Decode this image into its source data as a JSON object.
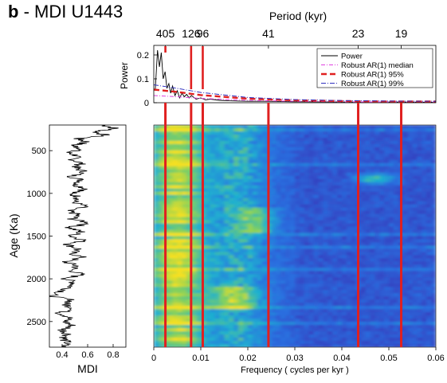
{
  "figure": {
    "panel_letter": "b",
    "title_rest": " - MDI U1443"
  },
  "colors": {
    "power": "#000000",
    "robust_median": "#e040e0",
    "robust_95": "#e02020",
    "robust_99": "#3030c0",
    "cycle_line": "#e02020",
    "cmap_low": "#3b1fa8",
    "cmap_mid1": "#2a6fe0",
    "cmap_mid2": "#1fb0d0",
    "cmap_high1": "#80d060",
    "cmap_high2": "#f5e020"
  },
  "chart_data": [
    {
      "id": "spectrum",
      "type": "line",
      "top_label": "Period (kyr)",
      "ylabel": "Power",
      "xlim": [
        0,
        0.06
      ],
      "ylim": [
        0,
        0.24
      ],
      "yticks": [
        0,
        0.1,
        0.2
      ],
      "period_ticks": [
        {
          "label": "405",
          "freq": 0.00247
        },
        {
          "label": "126",
          "freq": 0.00794
        },
        {
          "label": "96",
          "freq": 0.01042
        },
        {
          "label": "41",
          "freq": 0.02439
        },
        {
          "label": "23",
          "freq": 0.04348
        },
        {
          "label": "19",
          "freq": 0.05263
        }
      ],
      "legend": [
        "Power",
        "Robust AR(1) median",
        "Robust AR(1) 95%",
        "Robust AR(1) 99%"
      ],
      "legend_position": "top-right",
      "series": [
        {
          "name": "Power",
          "x": [
            0.0003,
            0.0008,
            0.0012,
            0.0016,
            0.002,
            0.0024,
            0.0028,
            0.0032,
            0.0036,
            0.004,
            0.0045,
            0.005,
            0.0055,
            0.006,
            0.0065,
            0.007,
            0.0075,
            0.008,
            0.009,
            0.01,
            0.011,
            0.012,
            0.014,
            0.016,
            0.018,
            0.02,
            0.024,
            0.03,
            0.04,
            0.05,
            0.06
          ],
          "y": [
            0.05,
            0.22,
            0.15,
            0.21,
            0.1,
            0.13,
            0.06,
            0.08,
            0.04,
            0.07,
            0.03,
            0.05,
            0.02,
            0.04,
            0.025,
            0.035,
            0.02,
            0.03,
            0.015,
            0.02,
            0.012,
            0.015,
            0.01,
            0.008,
            0.007,
            0.006,
            0.006,
            0.004,
            0.003,
            0.003,
            0.002
          ]
        },
        {
          "name": "Robust AR(1) median",
          "x": [
            0,
            0.005,
            0.01,
            0.02,
            0.03,
            0.04,
            0.05,
            0.06
          ],
          "y": [
            0.03,
            0.025,
            0.018,
            0.01,
            0.006,
            0.004,
            0.003,
            0.003
          ]
        },
        {
          "name": "Robust AR(1) 95%",
          "x": [
            0,
            0.005,
            0.01,
            0.02,
            0.03,
            0.04,
            0.05,
            0.06
          ],
          "y": [
            0.055,
            0.045,
            0.032,
            0.017,
            0.01,
            0.007,
            0.005,
            0.005
          ]
        },
        {
          "name": "Robust AR(1) 99%",
          "x": [
            0,
            0.005,
            0.01,
            0.02,
            0.03,
            0.04,
            0.05,
            0.06
          ],
          "y": [
            0.075,
            0.06,
            0.043,
            0.022,
            0.013,
            0.009,
            0.007,
            0.006
          ]
        }
      ]
    },
    {
      "id": "mdi",
      "type": "line",
      "xlabel": "MDI",
      "ylabel": "Age (Ka)",
      "xlim": [
        0.3,
        0.9
      ],
      "xticks": [
        0.4,
        0.6,
        0.8
      ],
      "ylim": [
        200,
        2800
      ],
      "yticks": [
        500,
        1000,
        1500,
        2000,
        2500
      ],
      "series": [
        {
          "name": "MDI",
          "age": [
            200,
            240,
            280,
            320,
            360,
            400,
            440,
            480,
            520,
            560,
            600,
            650,
            700,
            750,
            800,
            850,
            900,
            950,
            1000,
            1050,
            1100,
            1150,
            1200,
            1250,
            1300,
            1350,
            1400,
            1450,
            1500,
            1550,
            1600,
            1650,
            1700,
            1750,
            1800,
            1850,
            1900,
            1950,
            2000,
            2050,
            2100,
            2150,
            2200,
            2250,
            2300,
            2350,
            2400,
            2450,
            2500,
            2550,
            2600,
            2650,
            2700,
            2750,
            2800
          ],
          "mdi": [
            0.72,
            0.82,
            0.66,
            0.74,
            0.52,
            0.6,
            0.48,
            0.56,
            0.44,
            0.52,
            0.48,
            0.55,
            0.5,
            0.58,
            0.47,
            0.56,
            0.5,
            0.6,
            0.46,
            0.54,
            0.49,
            0.58,
            0.44,
            0.52,
            0.48,
            0.62,
            0.45,
            0.55,
            0.47,
            0.58,
            0.44,
            0.53,
            0.47,
            0.56,
            0.42,
            0.52,
            0.47,
            0.55,
            0.43,
            0.5,
            0.46,
            0.4,
            0.3,
            0.48,
            0.42,
            0.5,
            0.38,
            0.46,
            0.42,
            0.48,
            0.4,
            0.45,
            0.41,
            0.44,
            0.4
          ]
        }
      ]
    },
    {
      "id": "evolutive",
      "type": "heatmap",
      "xlabel": "Frequency ( cycles per kyr )",
      "xlim": [
        0,
        0.06
      ],
      "xticks": [
        "0",
        "0.01",
        "0.02",
        "0.03",
        "0.04",
        "0.05",
        "0.06"
      ],
      "ylim": [
        200,
        2800
      ],
      "cycle_lines_freq": [
        0.00247,
        0.00794,
        0.01042,
        0.02439,
        0.04348,
        0.05263
      ]
    }
  ]
}
